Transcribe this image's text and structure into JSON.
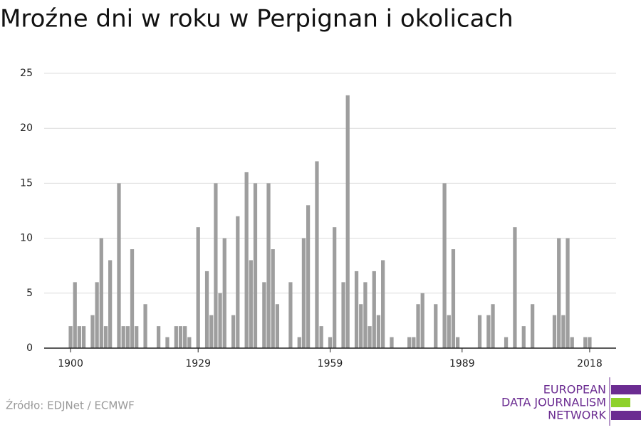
{
  "chart_data": {
    "type": "bar",
    "title": "Mroźne dni w roku w Perpignan i okolicach",
    "source": "Źródło: EDJNet / ECMWF",
    "logo": [
      "EUROPEAN",
      "DATA JOURNALISM",
      "NETWORK"
    ],
    "color": "#9e9e9e",
    "x": [
      1900,
      1901,
      1902,
      1903,
      1904,
      1905,
      1906,
      1907,
      1908,
      1909,
      1910,
      1911,
      1912,
      1913,
      1914,
      1915,
      1916,
      1917,
      1918,
      1919,
      1920,
      1921,
      1922,
      1923,
      1924,
      1925,
      1926,
      1927,
      1928,
      1929,
      1930,
      1931,
      1932,
      1933,
      1934,
      1935,
      1936,
      1937,
      1938,
      1939,
      1940,
      1941,
      1942,
      1943,
      1944,
      1945,
      1946,
      1947,
      1948,
      1949,
      1950,
      1951,
      1952,
      1953,
      1954,
      1955,
      1956,
      1957,
      1958,
      1959,
      1960,
      1961,
      1962,
      1963,
      1964,
      1965,
      1966,
      1967,
      1968,
      1969,
      1970,
      1971,
      1972,
      1973,
      1974,
      1975,
      1976,
      1977,
      1978,
      1979,
      1980,
      1981,
      1982,
      1983,
      1984,
      1985,
      1986,
      1987,
      1988,
      1989,
      1990,
      1991,
      1992,
      1993,
      1994,
      1995,
      1996,
      1997,
      1998,
      1999,
      2000,
      2001,
      2002,
      2003,
      2004,
      2005,
      2006,
      2007,
      2008,
      2009,
      2010,
      2011,
      2012,
      2013,
      2014,
      2015,
      2016,
      2017,
      2018
    ],
    "values": [
      2,
      6,
      2,
      2,
      0,
      3,
      6,
      10,
      2,
      8,
      0,
      15,
      2,
      2,
      9,
      2,
      0,
      4,
      0,
      0,
      2,
      0,
      1,
      0,
      2,
      2,
      2,
      1,
      0,
      11,
      0,
      7,
      3,
      15,
      5,
      10,
      0,
      3,
      12,
      0,
      16,
      8,
      15,
      0,
      6,
      15,
      9,
      4,
      0,
      0,
      6,
      0,
      1,
      10,
      13,
      0,
      17,
      2,
      0,
      1,
      11,
      0,
      6,
      23,
      0,
      7,
      4,
      6,
      2,
      7,
      3,
      8,
      0,
      1,
      0,
      0,
      0,
      1,
      1,
      4,
      5,
      0,
      0,
      4,
      0,
      15,
      3,
      9,
      1,
      0,
      0,
      0,
      0,
      3,
      0,
      3,
      4,
      0,
      0,
      1,
      0,
      11,
      0,
      2,
      0,
      4,
      0,
      0,
      0,
      0,
      3,
      10,
      3,
      10,
      1,
      0,
      0,
      1,
      1
    ],
    "xlim": [
      1894,
      2024
    ],
    "xticks": [
      1900,
      1929,
      1959,
      1989,
      2018
    ],
    "ylim": [
      0,
      25
    ],
    "yticks": [
      0,
      5,
      10,
      15,
      20,
      25
    ],
    "grid": true
  }
}
